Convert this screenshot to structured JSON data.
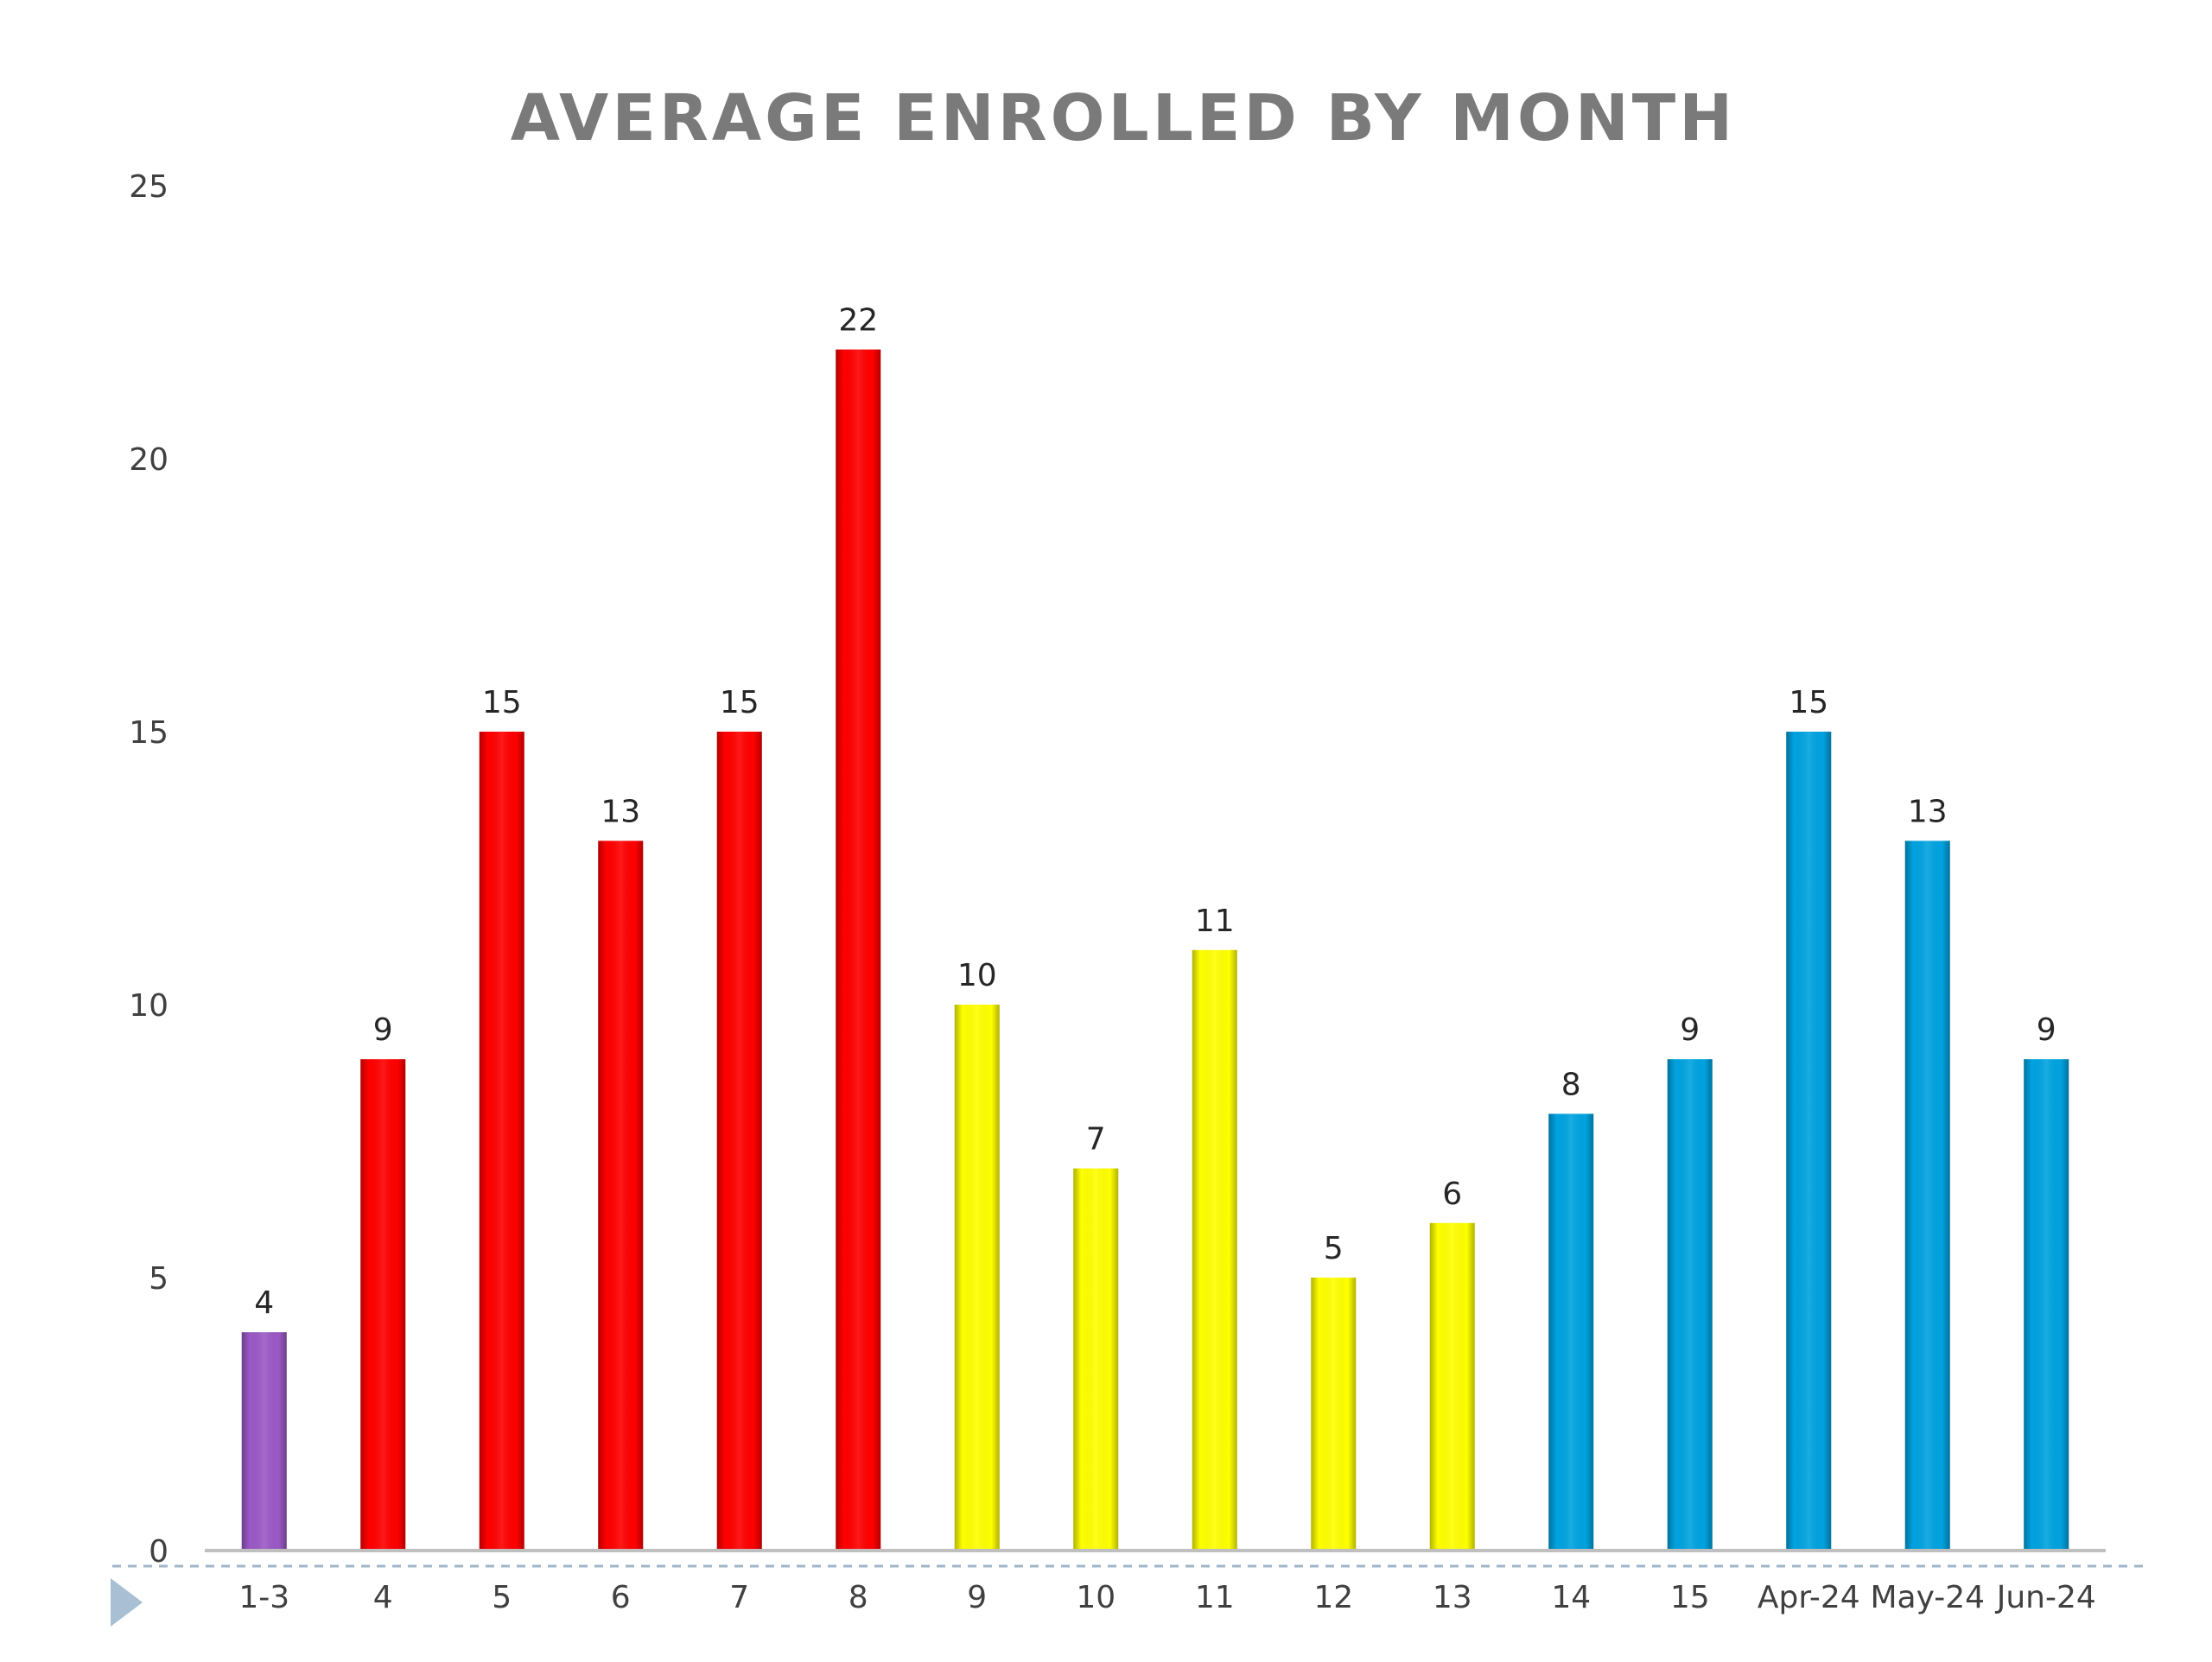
{
  "chart_data": {
    "type": "bar",
    "title": "AVERAGE ENROLLED BY MONTH",
    "xlabel": "",
    "ylabel": "",
    "categories": [
      "1-3",
      "4",
      "5",
      "6",
      "7",
      "8",
      "9",
      "10",
      "11",
      "12",
      "13",
      "14",
      "15",
      "Apr-24",
      "May-24",
      "Jun-24"
    ],
    "values": [
      4,
      9,
      15,
      13,
      15,
      22,
      10,
      7,
      11,
      5,
      6,
      8,
      9,
      15,
      13,
      9
    ],
    "bar_colors": [
      "#9b59c6",
      "#ff0000",
      "#ff0000",
      "#ff0000",
      "#ff0000",
      "#ff0000",
      "#ffff00",
      "#ffff00",
      "#ffff00",
      "#ffff00",
      "#ffff00",
      "#00a3e0",
      "#00a3e0",
      "#00a3e0",
      "#00a3e0",
      "#00a3e0"
    ],
    "ylim": [
      0,
      25
    ],
    "yticks": [
      0,
      5,
      10,
      15,
      20,
      25
    ],
    "grid": false,
    "legend": "none",
    "data_labels": true
  },
  "colors": {
    "title": "#7a7a7a",
    "axis": "#bfbfbf",
    "dashed_rule": "#9fb6c8",
    "nav_arrow": "#a9bfd4"
  },
  "icons": {
    "nav": "triangle-right-icon"
  }
}
